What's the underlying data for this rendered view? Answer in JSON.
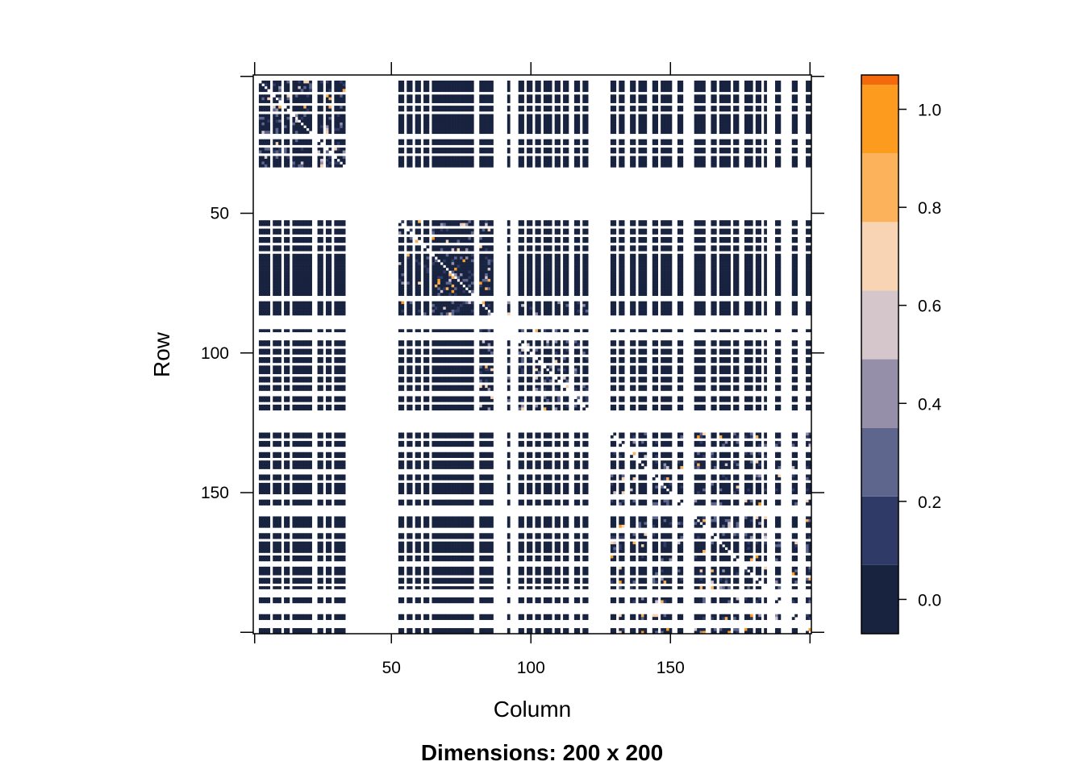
{
  "chart_data": {
    "type": "heatmap",
    "title": "Dimensions: 200 x 200",
    "xlabel": "Column",
    "ylabel": "Row",
    "dimensions": [
      200,
      200
    ],
    "xlim": [
      1,
      200
    ],
    "ylim": [
      1,
      200
    ],
    "y_axis_reversed": true,
    "x_ticks": [
      50,
      100,
      150
    ],
    "y_ticks": [
      50,
      100,
      150
    ],
    "active_columns": [
      3,
      4,
      5,
      6,
      8,
      9,
      10,
      12,
      13,
      15,
      16,
      17,
      18,
      19,
      20,
      21,
      24,
      25,
      27,
      28,
      30,
      31,
      32,
      33,
      53,
      54,
      56,
      57,
      59,
      60,
      62,
      63,
      65,
      66,
      67,
      68,
      69,
      70,
      71,
      72,
      73,
      74,
      75,
      76,
      77,
      78,
      79,
      82,
      83,
      84,
      85,
      86,
      92,
      96,
      97,
      99,
      100,
      102,
      103,
      105,
      106,
      107,
      109,
      110,
      112,
      113,
      116,
      117,
      119,
      120,
      129,
      130,
      132,
      133,
      136,
      137,
      139,
      140,
      141,
      144,
      145,
      147,
      148,
      149,
      150,
      153,
      154,
      159,
      160,
      161,
      162,
      165,
      166,
      168,
      169,
      170,
      171,
      173,
      174,
      177,
      178,
      179,
      181,
      182,
      184,
      188,
      189,
      194,
      195,
      199,
      200
    ],
    "active_rows": [
      3,
      4,
      5,
      6,
      8,
      9,
      10,
      12,
      13,
      15,
      16,
      17,
      18,
      19,
      20,
      21,
      24,
      25,
      27,
      28,
      30,
      31,
      32,
      33,
      53,
      54,
      56,
      57,
      59,
      60,
      62,
      63,
      65,
      66,
      67,
      68,
      69,
      70,
      71,
      72,
      73,
      74,
      75,
      76,
      77,
      78,
      79,
      82,
      83,
      84,
      85,
      86,
      92,
      96,
      97,
      99,
      100,
      102,
      103,
      105,
      106,
      107,
      109,
      110,
      112,
      113,
      116,
      117,
      119,
      120,
      129,
      130,
      132,
      133,
      136,
      137,
      139,
      140,
      141,
      144,
      145,
      147,
      148,
      149,
      150,
      153,
      154,
      159,
      160,
      161,
      162,
      165,
      166,
      168,
      169,
      170,
      171,
      173,
      174,
      177,
      178,
      179,
      181,
      182,
      184,
      188,
      189,
      194,
      195,
      199,
      200
    ],
    "typical_value": 0.02,
    "dense_blocks": [
      {
        "rows": [
          3,
          33
        ],
        "cols": [
          3,
          33
        ],
        "value_range": [
          0.0,
          0.9
        ]
      },
      {
        "rows": [
          53,
          86
        ],
        "cols": [
          53,
          86
        ],
        "value_range": [
          0.0,
          1.0
        ]
      },
      {
        "rows": [
          82,
          120
        ],
        "cols": [
          82,
          120
        ],
        "value_range": [
          0.0,
          0.8
        ]
      },
      {
        "rows": [
          129,
          200
        ],
        "cols": [
          129,
          200
        ],
        "value_range": [
          0.0,
          1.05
        ]
      }
    ],
    "colorbar": {
      "breaks": [
        -0.07,
        0.07,
        0.21,
        0.35,
        0.49,
        0.63,
        0.77,
        0.91,
        1.05,
        1.19,
        1.33
      ],
      "scale_max": 1.07,
      "colors": [
        "#182340",
        "#303a66",
        "#5e668e",
        "#958fa9",
        "#d4c6cb",
        "#f8d4b4",
        "#fbb25a",
        "#fc9b1d",
        "#f4690c",
        "#cd3a15"
      ],
      "ticks": [
        "0.0",
        "0.2",
        "0.4",
        "0.6",
        "0.8",
        "1.0"
      ],
      "tick_values": [
        0.0,
        0.2,
        0.4,
        0.6,
        0.8,
        1.0
      ]
    },
    "grid": false,
    "legend": "right"
  }
}
